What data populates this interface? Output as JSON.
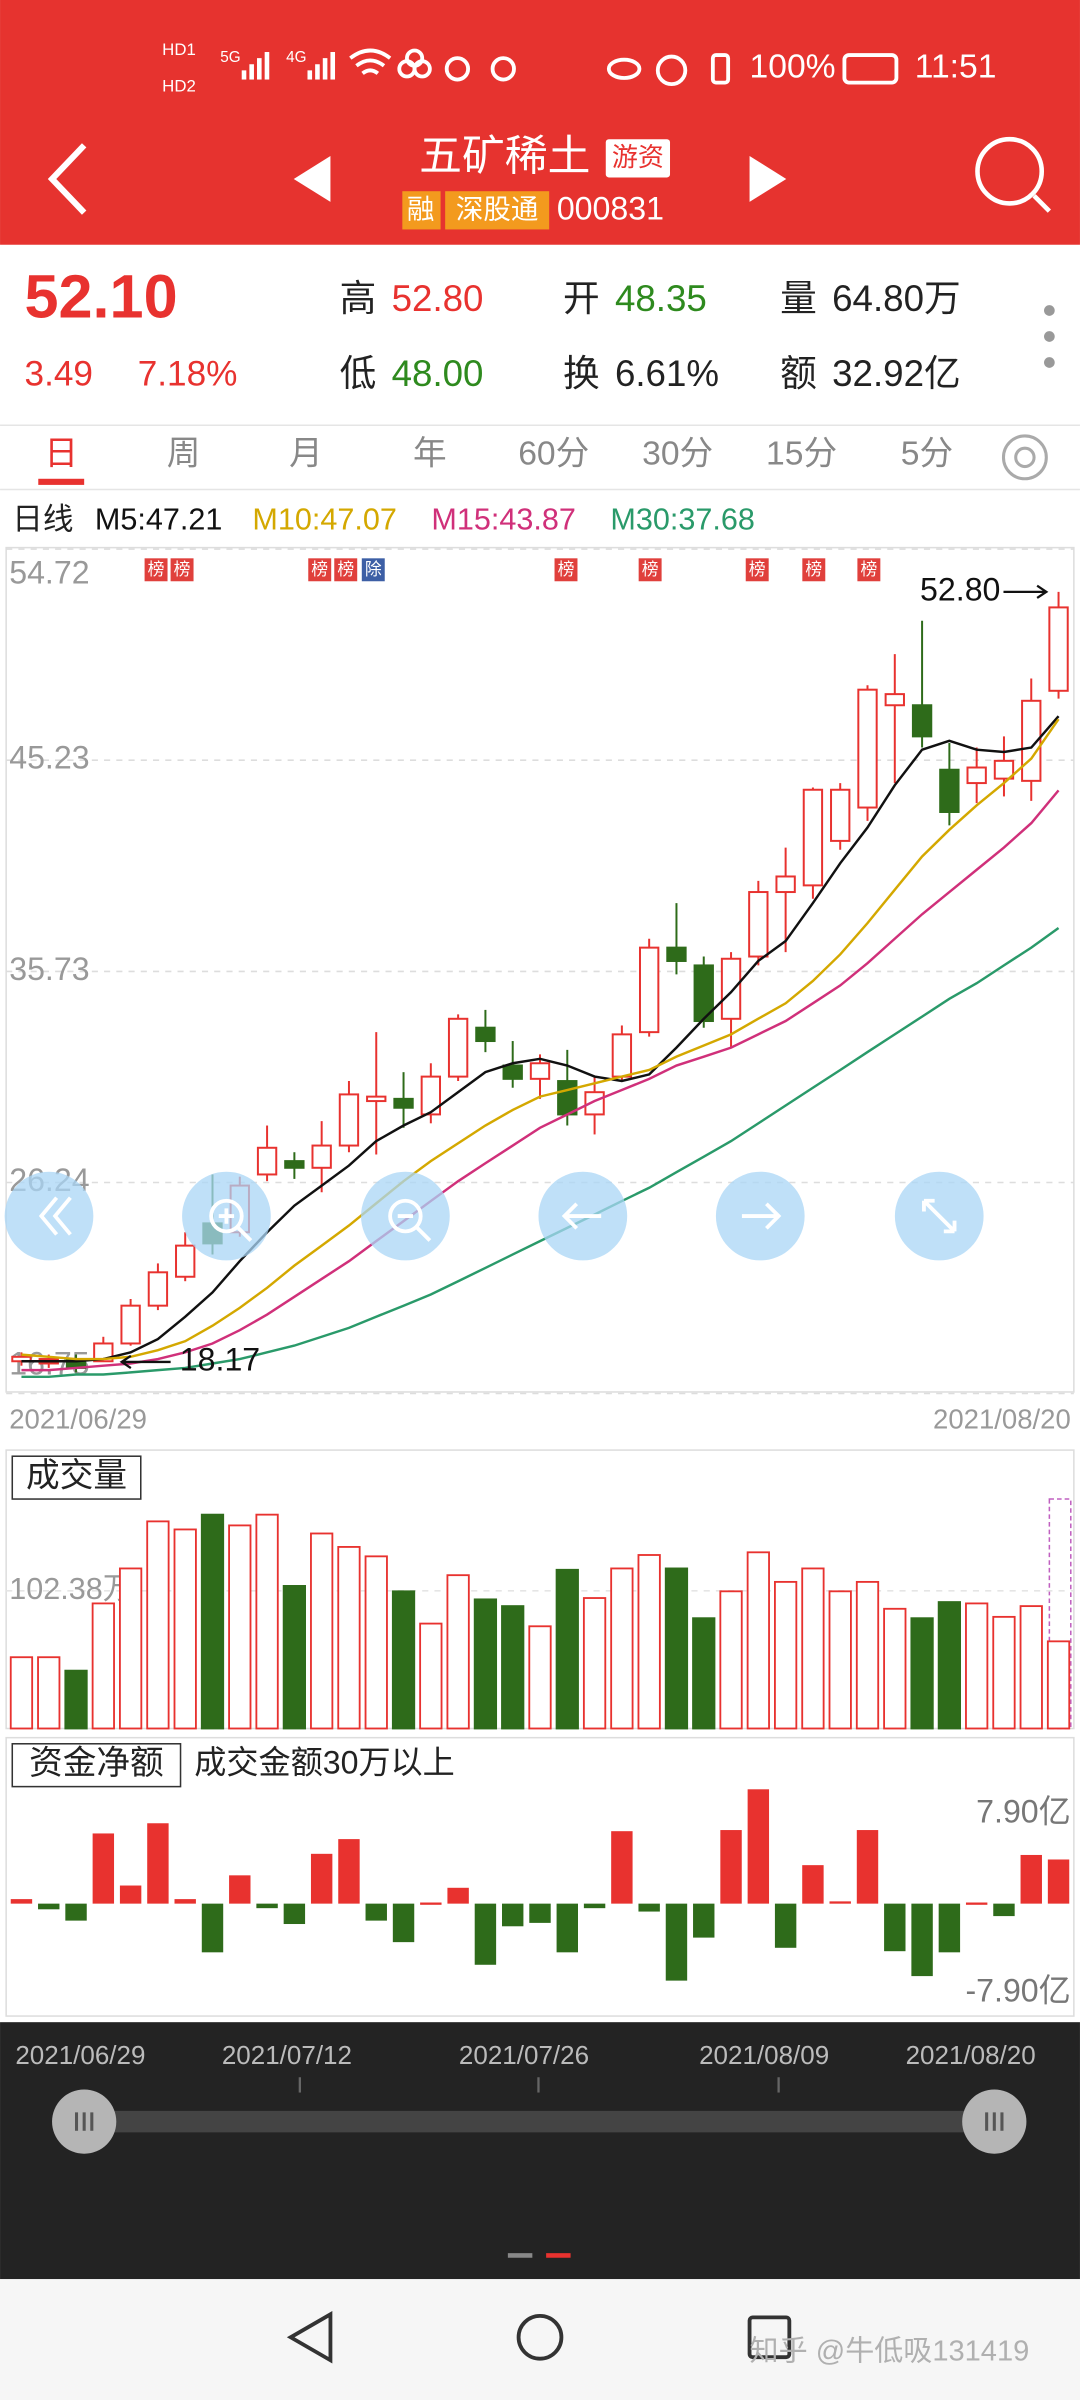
{
  "status_bar": {
    "sims": [
      "HD1",
      "HD2"
    ],
    "network": [
      "5G",
      "4G"
    ],
    "battery": "100%",
    "time": "11:51"
  },
  "header": {
    "title": "五矿稀土",
    "badge": "游资",
    "tags": [
      "融",
      "深股通"
    ],
    "code": "000831"
  },
  "quote": {
    "price": "52.10",
    "change": "3.49",
    "change_pct": "7.18%",
    "fields": [
      {
        "label": "高",
        "value": "52.80"
      },
      {
        "label": "开",
        "value": "48.35"
      },
      {
        "label": "量",
        "value": "64.80万"
      },
      {
        "label": "低",
        "value": "48.00"
      },
      {
        "label": "换",
        "value": "6.61%"
      },
      {
        "label": "额",
        "value": "32.92亿"
      }
    ]
  },
  "tabs": [
    "日",
    "周",
    "月",
    "年",
    "60分",
    "30分",
    "15分",
    "5分"
  ],
  "chart_data": [
    {
      "type": "candlestick",
      "title": "日线",
      "categories": [
        "2021/06/29",
        null,
        null,
        null,
        null,
        null,
        null,
        null,
        null,
        null,
        null,
        null,
        null,
        null,
        null,
        null,
        null,
        null,
        null,
        null,
        null,
        null,
        null,
        null,
        null,
        null,
        null,
        null,
        null,
        null,
        null,
        null,
        null,
        null,
        null,
        null,
        null,
        null,
        "2021/08/20"
      ],
      "open": [
        18.2,
        18.1,
        18.3,
        18.2,
        19.0,
        20.7,
        22.0,
        24.4,
        24.0,
        26.6,
        27.2,
        26.9,
        27.9,
        29.9,
        30.0,
        29.3,
        31.0,
        33.2,
        31.5,
        30.9,
        30.8,
        29.3,
        31.0,
        33.0,
        36.8,
        36.0,
        33.6,
        36.4,
        39.3,
        39.6,
        41.6,
        43.1,
        47.7,
        47.7,
        44.8,
        44.2,
        44.4,
        44.3,
        48.35
      ],
      "high": [
        18.6,
        18.5,
        18.5,
        19.3,
        21.0,
        22.6,
        24.0,
        26.6,
        26.5,
        28.8,
        27.6,
        29.0,
        30.8,
        33.0,
        31.2,
        31.6,
        33.8,
        34.0,
        32.6,
        32.0,
        32.2,
        31.0,
        33.3,
        37.2,
        38.8,
        36.4,
        36.6,
        39.8,
        41.3,
        44.0,
        44.2,
        48.6,
        50.0,
        51.5,
        46.0,
        45.8,
        46.3,
        48.9,
        52.8
      ],
      "low": [
        18.0,
        17.9,
        17.7,
        18.17,
        18.9,
        20.5,
        21.8,
        23.0,
        23.8,
        26.3,
        26.4,
        25.8,
        27.6,
        27.5,
        28.7,
        28.9,
        30.8,
        32.1,
        30.5,
        30.0,
        28.8,
        28.4,
        30.8,
        32.8,
        35.6,
        33.2,
        32.3,
        36.0,
        36.6,
        39.0,
        41.2,
        42.5,
        44.2,
        45.8,
        42.3,
        43.3,
        43.6,
        43.4,
        48.0
      ],
      "close": [
        18.4,
        18.3,
        17.9,
        19.0,
        20.7,
        22.2,
        23.4,
        23.5,
        26.1,
        27.8,
        26.9,
        27.9,
        30.2,
        30.1,
        29.6,
        31.0,
        33.6,
        32.6,
        30.9,
        31.6,
        29.3,
        30.3,
        32.9,
        36.8,
        36.2,
        33.5,
        36.3,
        39.3,
        40.0,
        43.9,
        43.9,
        48.4,
        48.2,
        46.3,
        42.9,
        44.9,
        45.2,
        47.9,
        52.1
      ],
      "up_color": "#e8322f",
      "down_color": "#2e6b1a",
      "series": [
        {
          "name": "M5:47.21",
          "color": "#111111",
          "values": [
            18.2,
            18.2,
            18.2,
            18.3,
            18.6,
            19.2,
            20.2,
            21.3,
            22.7,
            24.0,
            25.2,
            26.1,
            27.0,
            28.1,
            28.8,
            29.4,
            30.3,
            31.2,
            31.6,
            31.8,
            31.5,
            31.0,
            30.8,
            31.1,
            32.3,
            33.6,
            34.8,
            36.2,
            37.1,
            38.8,
            40.6,
            42.2,
            44.1,
            45.7,
            46.1,
            45.7,
            45.6,
            45.8,
            47.21
          ]
        },
        {
          "name": "M10:47.07",
          "color": "#d4a800",
          "values": [
            18.5,
            18.4,
            18.3,
            18.3,
            18.4,
            18.7,
            19.1,
            19.8,
            20.6,
            21.5,
            22.5,
            23.4,
            24.3,
            25.3,
            26.3,
            27.2,
            28.0,
            28.8,
            29.5,
            30.1,
            30.4,
            30.7,
            31.0,
            31.3,
            31.9,
            32.4,
            32.9,
            33.6,
            34.3,
            35.3,
            36.5,
            37.9,
            39.4,
            40.9,
            42.1,
            43.2,
            44.2,
            45.3,
            47.07
          ]
        },
        {
          "name": "M15:43.87",
          "color": "#d0307a",
          "values": [
            17.8,
            17.8,
            17.9,
            18.0,
            18.1,
            18.3,
            18.6,
            19.0,
            19.6,
            20.3,
            21.1,
            21.9,
            22.7,
            23.6,
            24.5,
            25.4,
            26.3,
            27.1,
            27.9,
            28.7,
            29.3,
            29.9,
            30.4,
            30.9,
            31.5,
            31.9,
            32.3,
            32.9,
            33.5,
            34.3,
            35.1,
            36.1,
            37.2,
            38.3,
            39.3,
            40.3,
            41.3,
            42.4,
            43.87
          ]
        },
        {
          "name": "M30:37.68",
          "color": "#2a9a6a",
          "values": [
            17.5,
            17.5,
            17.6,
            17.6,
            17.7,
            17.8,
            17.9,
            18.1,
            18.3,
            18.6,
            18.9,
            19.3,
            19.7,
            20.2,
            20.7,
            21.2,
            21.8,
            22.4,
            23.0,
            23.6,
            24.2,
            24.8,
            25.4,
            26.0,
            26.7,
            27.4,
            28.1,
            28.9,
            29.7,
            30.5,
            31.3,
            32.1,
            32.9,
            33.7,
            34.5,
            35.2,
            36.0,
            36.8,
            37.68
          ]
        }
      ],
      "ylim": [
        16.75,
        54.72
      ],
      "yticks": [
        16.75,
        26.24,
        35.73,
        45.23,
        54.72
      ],
      "grid": true,
      "badges": [
        "榜",
        "榜",
        "榜",
        "榜",
        "除",
        "榜",
        "榜",
        "榜",
        "榜",
        "榜"
      ],
      "annotations": [
        {
          "label": "52.80",
          "value": 52.8
        },
        {
          "label": "18.17",
          "value": 18.17
        }
      ]
    },
    {
      "type": "volume",
      "title": "成交量",
      "values": [
        53,
        53,
        43,
        93,
        119,
        154,
        148,
        159,
        151,
        159,
        106,
        145,
        135,
        128,
        102,
        78,
        114,
        96,
        91,
        76,
        118,
        97,
        119,
        129,
        119,
        82,
        102,
        131,
        109,
        119,
        102,
        109,
        89,
        82,
        94,
        93,
        83,
        91,
        64.8
      ],
      "ylim": [
        0,
        207
      ],
      "yticks": [
        {
          "value": 102.38,
          "label": "102.38万"
        }
      ],
      "grid": true
    },
    {
      "type": "flow",
      "title": "资金净额",
      "subtitle": "成交金额30万以上",
      "values": [
        0.4,
        -0.5,
        -1.5,
        6.2,
        1.6,
        7.1,
        0.4,
        -4.3,
        2.5,
        -0.4,
        -1.8,
        4.4,
        5.7,
        -1.5,
        -3.4,
        0.1,
        1.4,
        -5.4,
        -2.0,
        -1.7,
        -4.3,
        -0.4,
        6.4,
        -0.7,
        -6.8,
        -3.0,
        6.5,
        10.1,
        -3.9,
        3.4,
        0.2,
        6.5,
        -4.2,
        -6.4,
        -4.3,
        0.1,
        -1.1,
        4.3,
        3.9
      ],
      "color": "#e8322f",
      "negative_color": "#2e6b1a",
      "ylim": [
        -9.93,
        14.66
      ],
      "yticks": [
        {
          "value": 7.9,
          "label": "7.90亿"
        },
        {
          "value": -7.9,
          "label": "-7.90亿"
        }
      ],
      "grid": false
    }
  ],
  "navigator": {
    "dates": [
      "2021/06/29",
      "2021/07/12",
      "2021/07/26",
      "2021/08/09",
      "2021/08/20"
    ]
  },
  "watermark": "知乎 @牛低吸131419"
}
